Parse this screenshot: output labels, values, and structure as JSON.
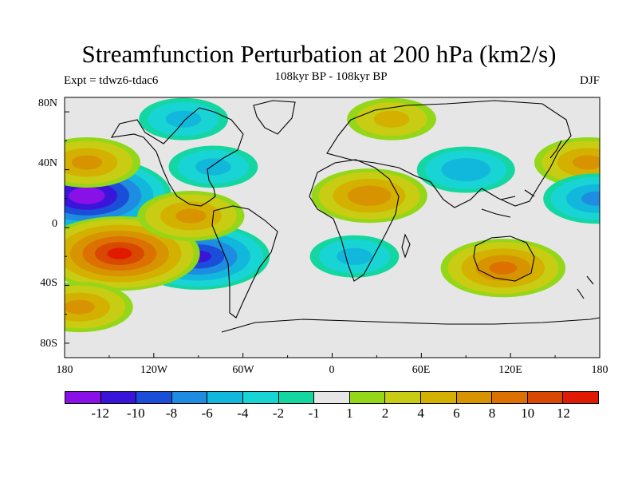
{
  "title": "Streamfunction Perturbation at 200 hPa (km2/s)",
  "subtitle": "108kyr BP - 108kyr BP",
  "left_label": "Expt = tdwz6-tdac6",
  "right_label": "DJF",
  "lat_ticks": [
    "80N",
    "40N",
    "0",
    "40S",
    "80S"
  ],
  "lon_ticks": [
    "180",
    "120W",
    "60W",
    "0",
    "60E",
    "120E",
    "180"
  ],
  "colorbar": {
    "colors": [
      "#8a10e8",
      "#3a14d8",
      "#1a4ed8",
      "#1e8ce0",
      "#12b8dc",
      "#18d4d4",
      "#14d6a0",
      "#e6e6e6",
      "#94d618",
      "#c8cc12",
      "#d4b000",
      "#d89400",
      "#dc7000",
      "#d84800",
      "#e01a00"
    ],
    "labels": [
      "-12",
      "-10",
      "-8",
      "-6",
      "-4",
      "-2",
      "-1",
      "1",
      "2",
      "4",
      "6",
      "8",
      "10",
      "12"
    ]
  },
  "chart_data": {
    "type": "heatmap",
    "title": "Streamfunction Perturbation at 200 hPa (km2/s)",
    "subtitle": "108kyr BP - 108kyr BP",
    "xlabel": "",
    "ylabel": "",
    "xlim": [
      -180,
      180
    ],
    "ylim": [
      -90,
      90
    ],
    "levels": [
      -12,
      -10,
      -8,
      -6,
      -4,
      -2,
      -1,
      1,
      2,
      4,
      6,
      8,
      10,
      12
    ],
    "anomaly_centers": [
      {
        "lon": -165,
        "lat": 22,
        "value": -13
      },
      {
        "lon": -90,
        "lat": -20,
        "value": -10
      },
      {
        "lon": -143,
        "lat": -18,
        "value": 12
      },
      {
        "lon": -170,
        "lat": -55,
        "value": 6
      },
      {
        "lon": -165,
        "lat": 45,
        "value": 6
      },
      {
        "lon": -95,
        "lat": 8,
        "value": 6
      },
      {
        "lon": 25,
        "lat": 22,
        "value": 7
      },
      {
        "lon": 115,
        "lat": -28,
        "value": 8
      },
      {
        "lon": 172,
        "lat": 45,
        "value": 6
      },
      {
        "lon": 90,
        "lat": 40,
        "value": -5
      },
      {
        "lon": -80,
        "lat": 42,
        "value": -4
      },
      {
        "lon": 178,
        "lat": 20,
        "value": -6
      },
      {
        "lon": 15,
        "lat": -20,
        "value": -4
      },
      {
        "lon": -100,
        "lat": 75,
        "value": -4
      },
      {
        "lon": 40,
        "lat": 75,
        "value": 4
      }
    ]
  }
}
